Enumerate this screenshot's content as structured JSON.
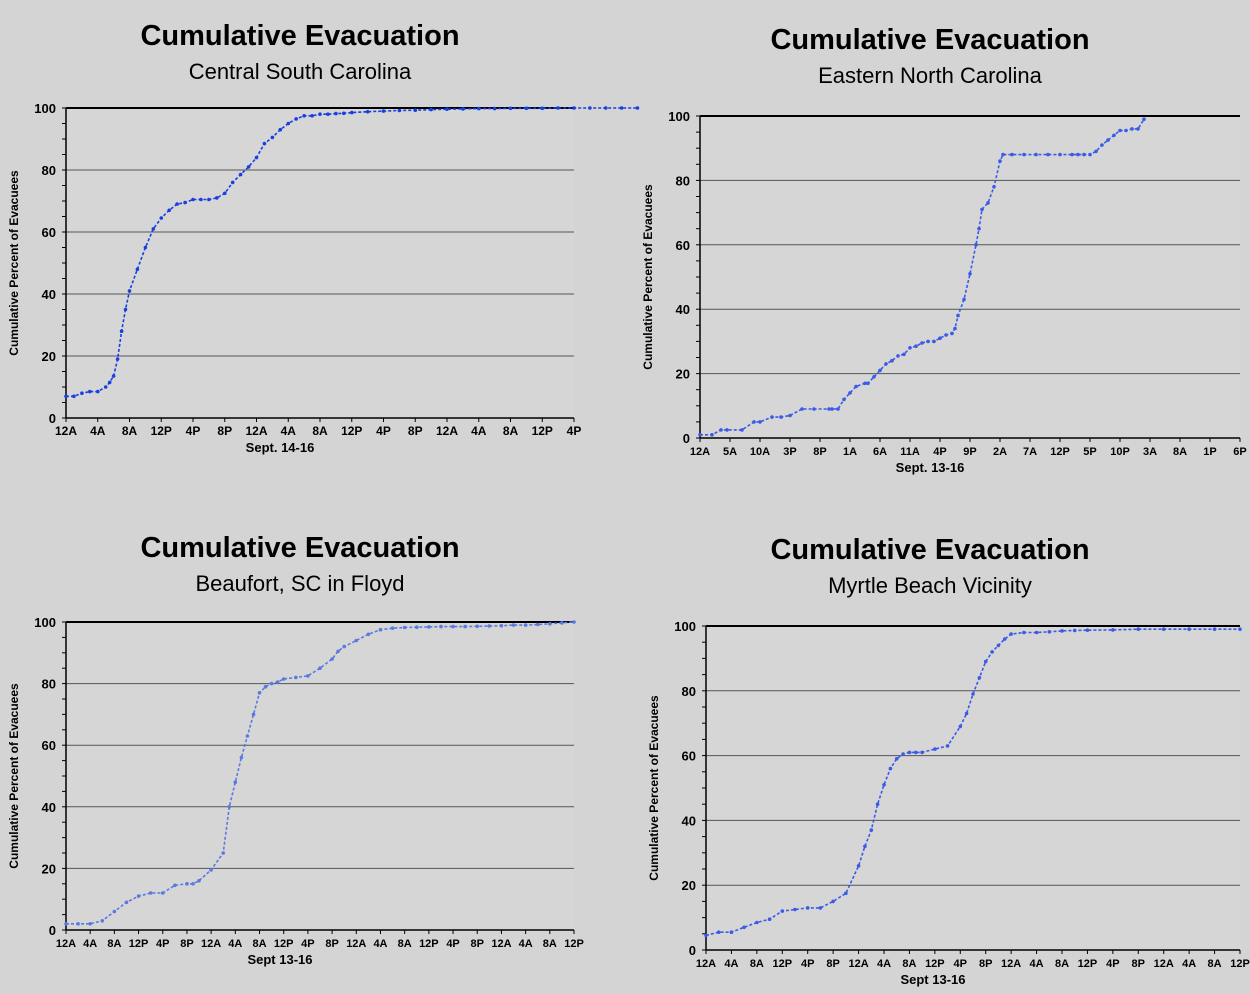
{
  "chart_data": [
    {
      "type": "line",
      "title": "Cumulative Evacuation",
      "subtitle": "Central South Carolina",
      "xlabel": "Sept. 14-16",
      "ylabel": "Cumulative Percent of Evacuees",
      "ylim": [
        0,
        100
      ],
      "yticks": [
        0,
        20,
        40,
        60,
        80,
        100
      ],
      "xticks": [
        "12A",
        "4A",
        "8A",
        "12P",
        "4P",
        "8P",
        "12A",
        "4A",
        "8A",
        "12P",
        "4P",
        "8P",
        "12A",
        "4A",
        "8A",
        "12P",
        "4P"
      ],
      "grid": true,
      "legend": "none",
      "line_color": "#1a3fe0",
      "x_hours": [
        0,
        2,
        4,
        6,
        8,
        10,
        11,
        12,
        13,
        14,
        15,
        16,
        18,
        20,
        22,
        24,
        26,
        28,
        30,
        32,
        34,
        36,
        38,
        40,
        42,
        44,
        46,
        48,
        50,
        52,
        54,
        56,
        58,
        60,
        62,
        64,
        66,
        68,
        70,
        72,
        76,
        80,
        84,
        88,
        92,
        96,
        100,
        104,
        108,
        112,
        116,
        120,
        124,
        128,
        132,
        136,
        140,
        144
      ],
      "values": [
        7,
        7,
        8,
        8.5,
        8.5,
        10,
        11.5,
        13.5,
        19,
        28,
        35,
        41,
        48,
        55,
        61,
        64.5,
        67,
        69,
        69.5,
        70.5,
        70.5,
        70.5,
        71,
        72.5,
        76,
        78.5,
        81,
        84,
        88.5,
        90.5,
        93,
        95,
        96.5,
        97.5,
        97.5,
        98,
        98,
        98.2,
        98.3,
        98.5,
        98.8,
        99,
        99.2,
        99.3,
        99.5,
        99.6,
        99.7,
        99.8,
        99.8,
        99.9,
        99.9,
        99.9,
        100,
        100,
        100,
        100,
        100,
        100
      ]
    },
    {
      "type": "line",
      "title": "Cumulative Evacuation",
      "subtitle": "Eastern North Carolina",
      "xlabel": "Sept. 13-16",
      "ylabel": "Cumulative Percent of Evacuees",
      "ylim": [
        0,
        100
      ],
      "yticks": [
        0,
        20,
        40,
        60,
        80,
        100
      ],
      "xticks": [
        "12A",
        "5A",
        "10A",
        "3P",
        "8P",
        "1A",
        "6A",
        "11A",
        "4P",
        "9P",
        "2A",
        "7A",
        "12P",
        "5P",
        "10P",
        "3A",
        "8A",
        "1P",
        "6P"
      ],
      "grid": true,
      "legend": "none",
      "line_color": "#3a5ae8",
      "x_hours": [
        0,
        4,
        7,
        9,
        14,
        18,
        20,
        24,
        27,
        30,
        34,
        38,
        43,
        44,
        46,
        48,
        50,
        52,
        55,
        56,
        58,
        60,
        62,
        64,
        66,
        68,
        70,
        72,
        74,
        76,
        78,
        80,
        82,
        84,
        85,
        86,
        88,
        90,
        92,
        93,
        94,
        96,
        98,
        100,
        101,
        104,
        108,
        112,
        116,
        120,
        124,
        126,
        128,
        130,
        132,
        134,
        136,
        138,
        140,
        142,
        144,
        146,
        148
      ],
      "values": [
        1,
        1,
        2.5,
        2.5,
        2.5,
        5,
        5,
        6.5,
        6.5,
        7,
        9,
        9,
        9,
        9,
        9,
        12,
        14,
        16,
        17,
        17,
        19,
        21,
        23,
        24,
        25.5,
        26,
        28,
        28.5,
        29.5,
        30,
        30,
        31,
        32,
        32.5,
        34,
        38,
        43,
        51,
        60,
        65,
        71,
        73,
        78,
        86,
        88,
        88,
        88,
        88,
        88,
        88,
        88,
        88,
        88,
        88,
        89,
        91,
        92.5,
        94,
        95.5,
        95.5,
        96,
        96,
        99
      ]
    },
    {
      "type": "line",
      "title": "Cumulative Evacuation",
      "subtitle": "Beaufort, SC in Floyd",
      "xlabel": "Sept 13-16",
      "ylabel": "Cumulative Percent of Evacuees",
      "ylim": [
        0,
        100
      ],
      "yticks": [
        0,
        20,
        40,
        60,
        80,
        100
      ],
      "xticks": [
        "12A",
        "4A",
        "8A",
        "12P",
        "4P",
        "8P",
        "12A",
        "4A",
        "8A",
        "12P",
        "4P",
        "8P",
        "12A",
        "4A",
        "8A",
        "12P",
        "4P",
        "8P",
        "12A",
        "4A",
        "8A",
        "12P"
      ],
      "grid": true,
      "legend": "none",
      "line_color": "#5a7ae0",
      "x_hours": [
        0,
        4,
        8,
        12,
        16,
        20,
        24,
        28,
        32,
        36,
        40,
        42,
        44,
        48,
        52,
        54,
        56,
        58,
        60,
        62,
        64,
        66,
        68,
        70,
        72,
        76,
        80,
        84,
        88,
        90,
        92,
        96,
        100,
        104,
        108,
        112,
        116,
        120,
        124,
        128,
        132,
        136,
        140,
        144,
        148,
        152,
        156,
        160,
        164,
        168
      ],
      "values": [
        2,
        2,
        2,
        3,
        6,
        9,
        11,
        12,
        12,
        14.5,
        15,
        15,
        16,
        19.5,
        25,
        40,
        48,
        56,
        63,
        70,
        77,
        79,
        80,
        80.5,
        81.5,
        82,
        82.5,
        85,
        88,
        90.5,
        92,
        94,
        96,
        97.5,
        98,
        98.2,
        98.3,
        98.4,
        98.5,
        98.5,
        98.5,
        98.6,
        98.7,
        98.8,
        99,
        99,
        99.2,
        99.4,
        99.7,
        100
      ]
    },
    {
      "type": "line",
      "title": "Cumulative Evacuation",
      "subtitle": "Myrtle Beach Vicinity",
      "xlabel": "Sept 13-16",
      "ylabel": "Cumulative Percent of Evacuees",
      "ylim": [
        0,
        100
      ],
      "yticks": [
        0,
        20,
        40,
        60,
        80,
        100
      ],
      "xticks": [
        "12A",
        "4A",
        "8A",
        "12P",
        "4P",
        "8P",
        "12A",
        "4A",
        "8A",
        "12P",
        "4P",
        "8P",
        "12A",
        "4A",
        "8A",
        "12P",
        "4P",
        "8P",
        "12A",
        "4A",
        "8A",
        "12P"
      ],
      "grid": true,
      "legend": "none",
      "line_color": "#3a5ae8",
      "x_hours": [
        0,
        4,
        8,
        12,
        16,
        20,
        24,
        28,
        32,
        36,
        40,
        44,
        48,
        50,
        52,
        54,
        56,
        58,
        60,
        62,
        64,
        66,
        68,
        72,
        76,
        80,
        82,
        84,
        86,
        88,
        90,
        92,
        94,
        96,
        100,
        104,
        108,
        112,
        116,
        120,
        128,
        136,
        144,
        152,
        160,
        168
      ],
      "values": [
        4.5,
        5.5,
        5.5,
        7,
        8.5,
        9.5,
        12,
        12.5,
        13,
        13,
        15,
        17.5,
        26,
        32,
        37,
        45,
        51,
        56,
        59,
        60.5,
        61,
        61,
        61,
        62,
        63,
        69,
        73,
        79,
        84,
        89,
        92,
        94,
        96,
        97.5,
        98,
        98,
        98.2,
        98.5,
        98.6,
        98.7,
        98.8,
        99,
        99,
        99,
        99,
        99
      ]
    }
  ]
}
